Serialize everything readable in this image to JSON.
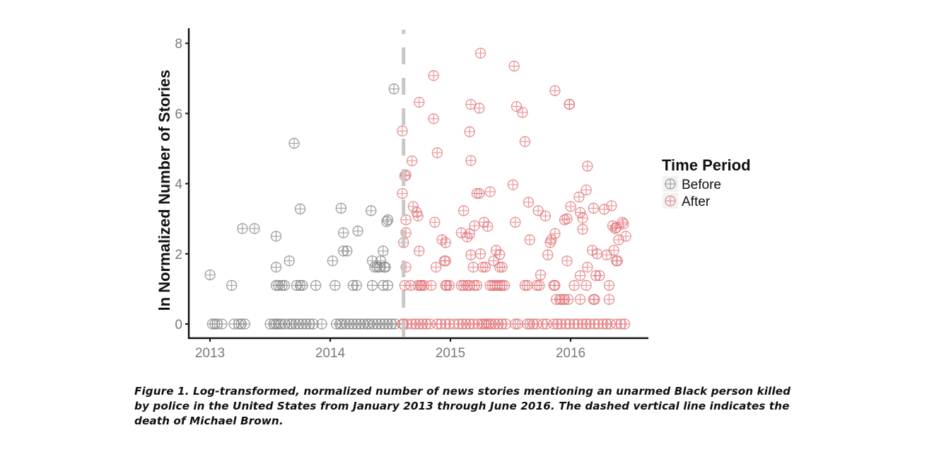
{
  "chart_data": {
    "type": "scatter",
    "title": "",
    "xlabel": "",
    "ylabel": "ln Normalized Number of Stories",
    "xlim": [
      2012.82,
      2016.65
    ],
    "ylim": [
      -0.4,
      8.3
    ],
    "x_ticks": [
      2013,
      2014,
      2015,
      2016
    ],
    "x_tick_labels": [
      "2013",
      "2014",
      "2015",
      "2016"
    ],
    "y_ticks": [
      0,
      2,
      4,
      6,
      8
    ],
    "y_tick_labels": [
      "0",
      "2",
      "4",
      "6",
      "8"
    ],
    "grid": false,
    "marker": "circle-plus",
    "vline": {
      "x": 2014.61,
      "style": "dashed",
      "color": "#c8c8c8",
      "annotation": "death of Michael Brown"
    },
    "legend": {
      "title": "Time Period",
      "position": "right"
    },
    "series": [
      {
        "name": "Before",
        "color": "#7f7f7f",
        "points": [
          [
            2013.0,
            1.4
          ],
          [
            2013.18,
            1.1
          ],
          [
            2013.27,
            2.72
          ],
          [
            2013.37,
            2.72
          ],
          [
            2013.55,
            2.5
          ],
          [
            2013.55,
            1.62
          ],
          [
            2013.66,
            1.8
          ],
          [
            2013.7,
            5.15
          ],
          [
            2013.75,
            3.28
          ],
          [
            2013.55,
            1.1
          ],
          [
            2013.57,
            1.1
          ],
          [
            2013.6,
            1.1
          ],
          [
            2013.62,
            1.1
          ],
          [
            2013.72,
            1.1
          ],
          [
            2013.75,
            1.1
          ],
          [
            2013.77,
            1.1
          ],
          [
            2013.88,
            1.1
          ],
          [
            2014.02,
            1.8
          ],
          [
            2014.04,
            1.1
          ],
          [
            2014.09,
            3.3
          ],
          [
            2014.11,
            2.6
          ],
          [
            2014.11,
            2.08
          ],
          [
            2014.14,
            2.08
          ],
          [
            2014.19,
            1.1
          ],
          [
            2014.22,
            1.1
          ],
          [
            2014.23,
            2.65
          ],
          [
            2014.34,
            3.23
          ],
          [
            2014.35,
            1.8
          ],
          [
            2014.35,
            1.1
          ],
          [
            2014.37,
            1.62
          ],
          [
            2014.39,
            1.62
          ],
          [
            2014.41,
            1.62
          ],
          [
            2014.42,
            1.8
          ],
          [
            2014.44,
            2.08
          ],
          [
            2014.45,
            1.62
          ],
          [
            2014.46,
            1.62
          ],
          [
            2014.47,
            2.92
          ],
          [
            2014.48,
            2.97
          ],
          [
            2014.44,
            1.1
          ],
          [
            2014.48,
            1.1
          ],
          [
            2014.53,
            6.7
          ],
          [
            2013.02,
            0
          ],
          [
            2013.04,
            0
          ],
          [
            2013.06,
            0
          ],
          [
            2013.1,
            0
          ],
          [
            2013.2,
            0
          ],
          [
            2013.24,
            0
          ],
          [
            2013.26,
            0
          ],
          [
            2013.29,
            0
          ],
          [
            2013.5,
            0
          ],
          [
            2013.53,
            0
          ],
          [
            2013.55,
            0
          ],
          [
            2013.57,
            0
          ],
          [
            2013.59,
            0
          ],
          [
            2013.62,
            0
          ],
          [
            2013.66,
            0
          ],
          [
            2013.68,
            0
          ],
          [
            2013.71,
            0
          ],
          [
            2013.74,
            0
          ],
          [
            2013.77,
            0
          ],
          [
            2013.8,
            0
          ],
          [
            2013.83,
            0
          ],
          [
            2013.86,
            0
          ],
          [
            2013.93,
            0
          ],
          [
            2014.05,
            0
          ],
          [
            2014.08,
            0
          ],
          [
            2014.1,
            0
          ],
          [
            2014.13,
            0
          ],
          [
            2014.16,
            0
          ],
          [
            2014.19,
            0
          ],
          [
            2014.22,
            0
          ],
          [
            2014.25,
            0
          ],
          [
            2014.28,
            0
          ],
          [
            2014.31,
            0
          ],
          [
            2014.33,
            0
          ],
          [
            2014.36,
            0
          ],
          [
            2014.39,
            0
          ],
          [
            2014.42,
            0
          ],
          [
            2014.45,
            0
          ],
          [
            2014.48,
            0
          ],
          [
            2014.51,
            0
          ],
          [
            2014.54,
            0
          ]
        ]
      },
      {
        "name": "After",
        "color": "#e06b70",
        "points": [
          [
            2014.6,
            5.5
          ],
          [
            2014.6,
            3.72
          ],
          [
            2014.61,
            2.32
          ],
          [
            2014.62,
            4.22
          ],
          [
            2014.63,
            4.25
          ],
          [
            2014.63,
            2.97
          ],
          [
            2014.63,
            2.6
          ],
          [
            2014.63,
            1.62
          ],
          [
            2014.68,
            4.65
          ],
          [
            2014.69,
            3.35
          ],
          [
            2014.72,
            3.18
          ],
          [
            2014.73,
            3.08
          ],
          [
            2014.74,
            6.32
          ],
          [
            2014.74,
            2.08
          ],
          [
            2014.86,
            7.08
          ],
          [
            2014.86,
            5.85
          ],
          [
            2014.88,
            1.62
          ],
          [
            2014.87,
            2.9
          ],
          [
            2014.89,
            4.88
          ],
          [
            2014.93,
            2.4
          ],
          [
            2014.96,
            2.32
          ],
          [
            2014.95,
            1.8
          ],
          [
            2014.96,
            1.8
          ],
          [
            2015.09,
            2.6
          ],
          [
            2015.11,
            3.23
          ],
          [
            2015.14,
            2.48
          ],
          [
            2015.16,
            5.48
          ],
          [
            2015.17,
            6.26
          ],
          [
            2015.17,
            4.66
          ],
          [
            2015.16,
            2.57
          ],
          [
            2015.17,
            1.97
          ],
          [
            2015.19,
            1.62
          ],
          [
            2015.2,
            2.8
          ],
          [
            2015.22,
            3.72
          ],
          [
            2015.24,
            3.72
          ],
          [
            2015.24,
            6.15
          ],
          [
            2015.25,
            7.72
          ],
          [
            2015.25,
            2.0
          ],
          [
            2015.27,
            1.62
          ],
          [
            2015.28,
            2.9
          ],
          [
            2015.29,
            1.62
          ],
          [
            2015.31,
            2.78
          ],
          [
            2015.33,
            3.77
          ],
          [
            2015.36,
            1.8
          ],
          [
            2015.38,
            2.1
          ],
          [
            2015.41,
            1.98
          ],
          [
            2015.41,
            1.62
          ],
          [
            2015.43,
            1.62
          ],
          [
            2015.52,
            3.97
          ],
          [
            2015.53,
            7.35
          ],
          [
            2015.54,
            2.9
          ],
          [
            2015.55,
            6.2
          ],
          [
            2015.6,
            6.03
          ],
          [
            2015.62,
            5.2
          ],
          [
            2015.65,
            3.47
          ],
          [
            2015.66,
            2.4
          ],
          [
            2015.73,
            3.23
          ],
          [
            2015.75,
            1.4
          ],
          [
            2015.79,
            3.08
          ],
          [
            2015.81,
            1.97
          ],
          [
            2015.83,
            2.32
          ],
          [
            2015.84,
            2.4
          ],
          [
            2015.87,
            6.65
          ],
          [
            2015.87,
            2.58
          ],
          [
            2015.95,
            2.97
          ],
          [
            2015.97,
            3.0
          ],
          [
            2015.97,
            1.8
          ],
          [
            2015.99,
            6.26
          ],
          [
            2015.99,
            6.26
          ],
          [
            2016.0,
            3.35
          ],
          [
            2016.07,
            3.62
          ],
          [
            2016.08,
            3.18
          ],
          [
            2016.08,
            1.38
          ],
          [
            2016.1,
            3.02
          ],
          [
            2016.1,
            2.7
          ],
          [
            2016.13,
            3.82
          ],
          [
            2016.14,
            4.5
          ],
          [
            2016.14,
            1.62
          ],
          [
            2016.18,
            2.1
          ],
          [
            2016.19,
            3.3
          ],
          [
            2016.21,
            1.38
          ],
          [
            2016.22,
            2.0
          ],
          [
            2016.24,
            1.38
          ],
          [
            2016.28,
            3.27
          ],
          [
            2016.3,
            1.97
          ],
          [
            2016.34,
            3.37
          ],
          [
            2016.35,
            2.8
          ],
          [
            2016.36,
            2.1
          ],
          [
            2016.37,
            2.72
          ],
          [
            2016.38,
            2.75
          ],
          [
            2016.38,
            1.8
          ],
          [
            2016.39,
            1.8
          ],
          [
            2016.4,
            2.4
          ],
          [
            2016.43,
            2.9
          ],
          [
            2016.44,
            2.85
          ],
          [
            2016.46,
            2.5
          ],
          [
            2014.62,
            1.1
          ],
          [
            2014.67,
            1.1
          ],
          [
            2014.73,
            1.1
          ],
          [
            2014.75,
            1.1
          ],
          [
            2014.76,
            1.1
          ],
          [
            2014.78,
            1.1
          ],
          [
            2014.84,
            1.1
          ],
          [
            2014.96,
            1.1
          ],
          [
            2014.97,
            1.1
          ],
          [
            2014.99,
            1.1
          ],
          [
            2015.09,
            1.1
          ],
          [
            2015.11,
            1.1
          ],
          [
            2015.14,
            1.1
          ],
          [
            2015.16,
            1.1
          ],
          [
            2015.2,
            1.1
          ],
          [
            2015.22,
            1.1
          ],
          [
            2015.33,
            1.1
          ],
          [
            2015.35,
            1.1
          ],
          [
            2015.37,
            1.1
          ],
          [
            2015.39,
            1.1
          ],
          [
            2015.41,
            1.1
          ],
          [
            2015.43,
            1.1
          ],
          [
            2015.45,
            1.1
          ],
          [
            2015.62,
            1.1
          ],
          [
            2015.64,
            1.1
          ],
          [
            2015.72,
            1.1
          ],
          [
            2015.74,
            1.1
          ],
          [
            2015.86,
            1.1
          ],
          [
            2015.87,
            1.1
          ],
          [
            2016.03,
            1.1
          ],
          [
            2016.13,
            1.1
          ],
          [
            2016.32,
            1.1
          ],
          [
            2015.88,
            0.7
          ],
          [
            2015.91,
            0.7
          ],
          [
            2015.93,
            0.7
          ],
          [
            2015.95,
            0.7
          ],
          [
            2015.98,
            0.7
          ],
          [
            2016.08,
            0.7
          ],
          [
            2016.19,
            0.7
          ],
          [
            2016.2,
            0.7
          ],
          [
            2016.32,
            0.7
          ],
          [
            2014.6,
            0
          ],
          [
            2014.61,
            0
          ],
          [
            2014.64,
            0
          ],
          [
            2014.68,
            0
          ],
          [
            2014.71,
            0
          ],
          [
            2014.74,
            0
          ],
          [
            2014.77,
            0
          ],
          [
            2014.8,
            0
          ],
          [
            2014.83,
            0
          ],
          [
            2014.89,
            0
          ],
          [
            2014.92,
            0
          ],
          [
            2014.96,
            0
          ],
          [
            2014.99,
            0
          ],
          [
            2015.03,
            0
          ],
          [
            2015.07,
            0
          ],
          [
            2015.1,
            0
          ],
          [
            2015.13,
            0
          ],
          [
            2015.16,
            0
          ],
          [
            2015.19,
            0
          ],
          [
            2015.23,
            0
          ],
          [
            2015.26,
            0
          ],
          [
            2015.28,
            0
          ],
          [
            2015.3,
            0
          ],
          [
            2015.32,
            0
          ],
          [
            2015.34,
            0
          ],
          [
            2015.37,
            0
          ],
          [
            2015.4,
            0
          ],
          [
            2015.43,
            0
          ],
          [
            2015.46,
            0
          ],
          [
            2015.54,
            0
          ],
          [
            2015.56,
            0
          ],
          [
            2015.64,
            0
          ],
          [
            2015.66,
            0
          ],
          [
            2015.69,
            0
          ],
          [
            2015.72,
            0
          ],
          [
            2015.77,
            0
          ],
          [
            2015.8,
            0
          ],
          [
            2015.86,
            0
          ],
          [
            2015.89,
            0
          ],
          [
            2015.92,
            0
          ],
          [
            2015.96,
            0
          ],
          [
            2015.99,
            0
          ],
          [
            2016.03,
            0
          ],
          [
            2016.06,
            0
          ],
          [
            2016.1,
            0
          ],
          [
            2016.13,
            0
          ],
          [
            2016.16,
            0
          ],
          [
            2016.2,
            0
          ],
          [
            2016.23,
            0
          ],
          [
            2016.27,
            0
          ],
          [
            2016.3,
            0
          ],
          [
            2016.33,
            0
          ],
          [
            2016.38,
            0
          ],
          [
            2016.42,
            0
          ],
          [
            2016.45,
            0
          ]
        ]
      }
    ]
  },
  "caption": {
    "text": "Figure 1. Log-transformed, normalized number of news stories mentioning an unarmed Black person killed by police in the United States from January 2013 through June 2016. The dashed vertical line indicates the death of Michael Brown."
  }
}
